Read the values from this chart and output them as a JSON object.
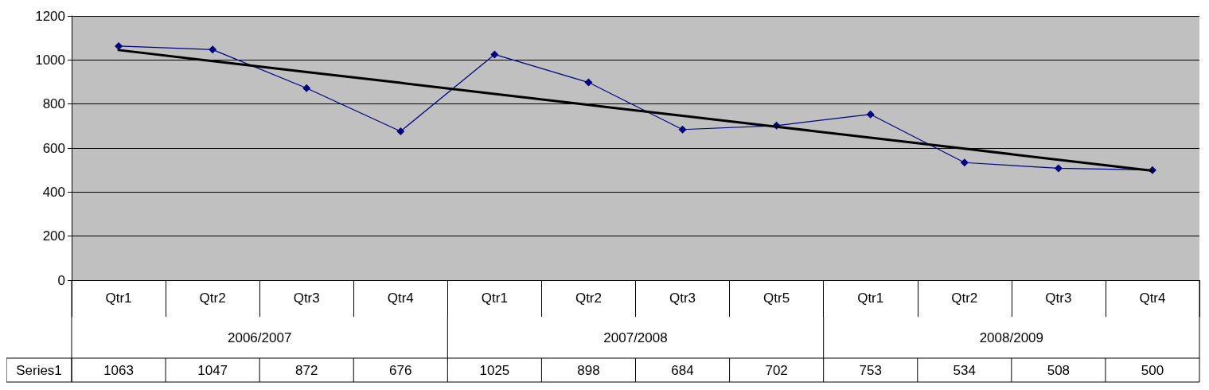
{
  "chart_data": {
    "type": "line",
    "categories": [
      "Qtr1",
      "Qtr2",
      "Qtr3",
      "Qtr4",
      "Qtr1",
      "Qtr2",
      "Qtr3",
      "Qtr5",
      "Qtr1",
      "Qtr2",
      "Qtr3",
      "Qtr4"
    ],
    "series": [
      {
        "name": "Series1",
        "color": "#000080",
        "values": [
          1063,
          1047,
          872,
          676,
          1025,
          898,
          684,
          702,
          753,
          534,
          508,
          500
        ],
        "value_labels": [
          "1063",
          "1047",
          "872",
          "676",
          "1025",
          "898",
          "684",
          "702",
          "753",
          "534",
          "508",
          "500"
        ],
        "marker": "diamond"
      },
      {
        "type": "line",
        "color": "#000000",
        "values": [
          1045,
          995,
          945,
          896,
          846,
          796,
          746,
          697,
          647,
          597,
          547,
          497
        ],
        "marker": "none"
      }
    ],
    "annotations": [
      "2006/2007",
      "2007/2008",
      "2008/2009"
    ],
    "ylim": [
      0,
      1200
    ],
    "yticks": [
      0,
      200,
      400,
      600,
      800,
      1000,
      1200
    ],
    "grid": "y",
    "line_style": "solid"
  }
}
